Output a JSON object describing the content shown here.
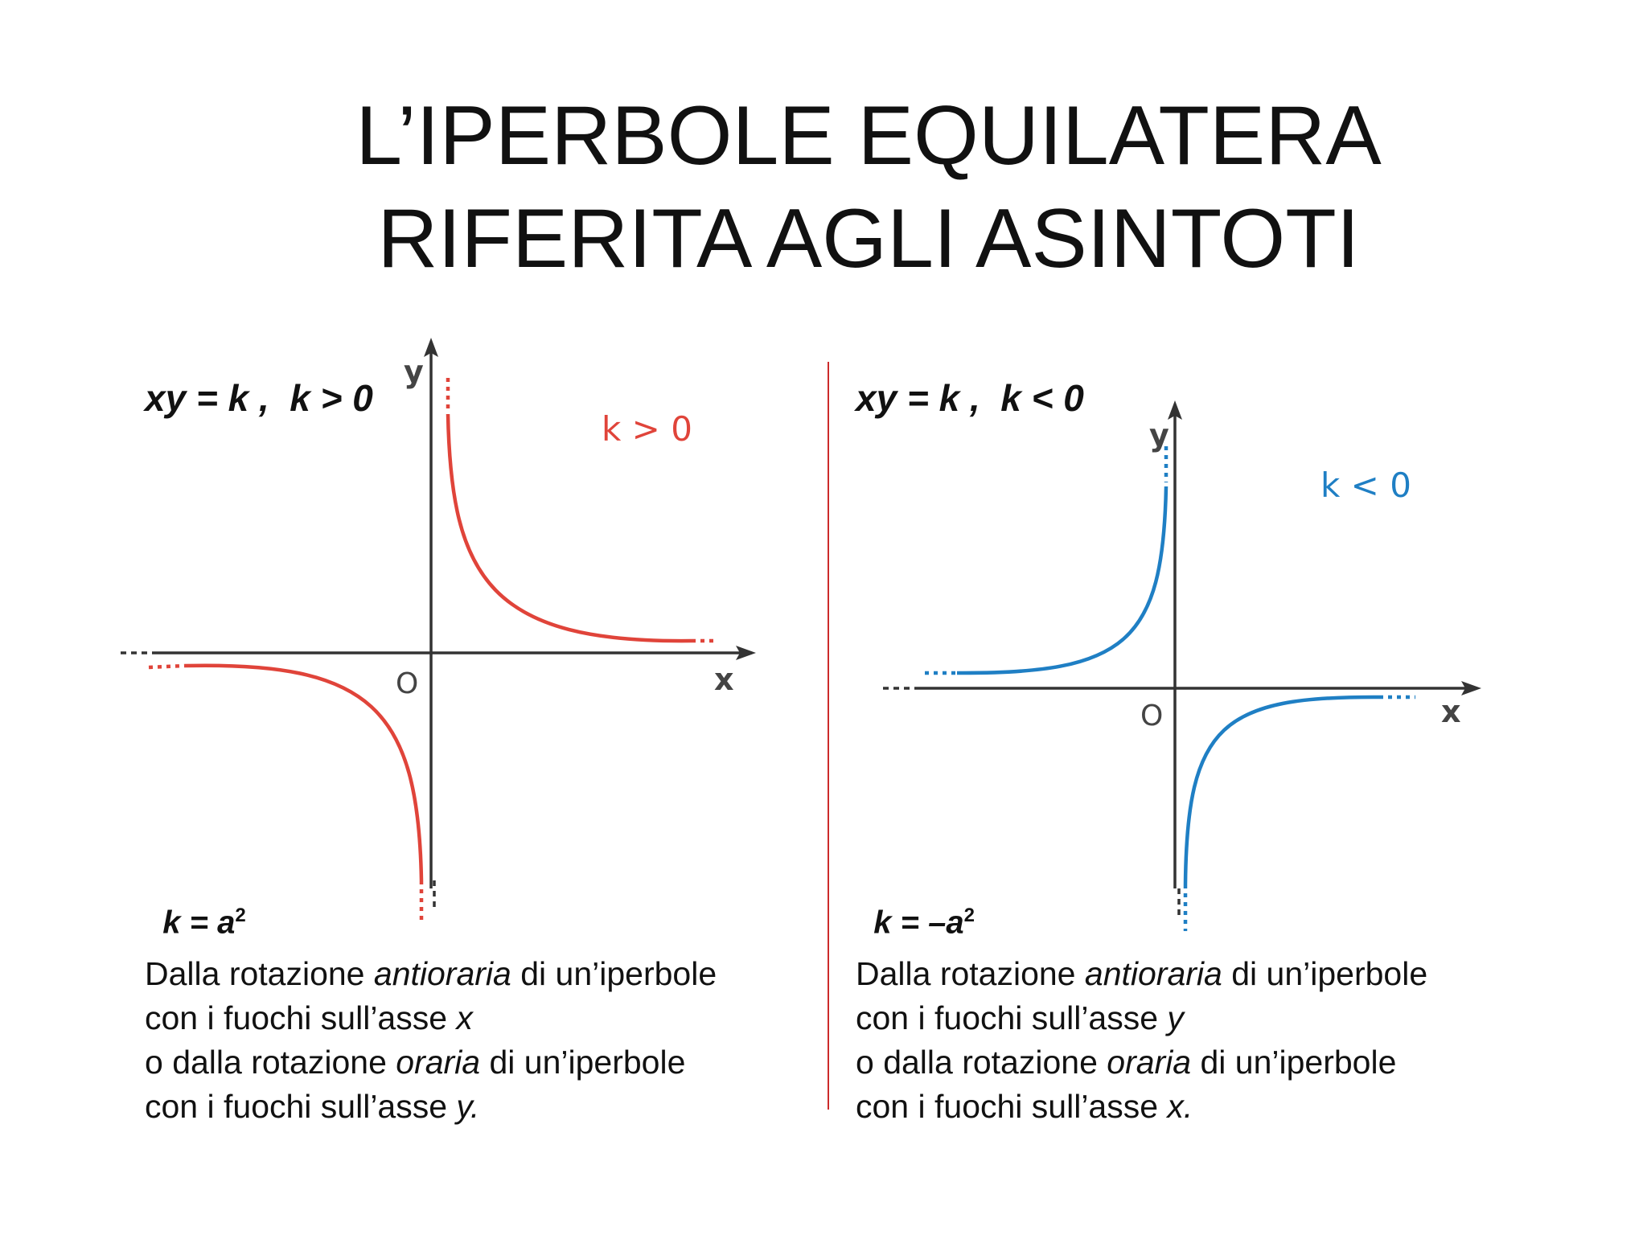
{
  "title": {
    "line1": "L’IPERBOLE EQUILATERA",
    "line2": "RIFERITA AGLI ASINTOTI"
  },
  "left": {
    "equation_main": "xy = k ,  k > 0",
    "k_label": "k = a",
    "k_exp": "2",
    "graph": {
      "curve_label": "k > 0",
      "x_axis": "x",
      "y_axis": "y",
      "origin": "O",
      "curve_color": "#e0443a"
    },
    "desc": {
      "l1a": "Dalla rotazione ",
      "l1b": "antioraria",
      "l1c": " di un’iperbole",
      "l2a": "con i fuochi sull’asse ",
      "l2b": "x",
      "l3a": "o dalla rotazione ",
      "l3b": "oraria",
      "l3c": " di un’iperbole",
      "l4a": "con i fuochi sull’asse ",
      "l4b": "y."
    }
  },
  "right": {
    "equation_main": "xy = k ,  k < 0",
    "k_label": "k = –a",
    "k_exp": "2",
    "graph": {
      "curve_label": "k < 0",
      "x_axis": "x",
      "y_axis": "y",
      "origin": "O",
      "curve_color": "#1f7fc4"
    },
    "desc": {
      "l1a": "Dalla rotazione ",
      "l1b": "antioraria",
      "l1c": " di un’iperbole",
      "l2a": "con i fuochi sull’asse ",
      "l2b": "y",
      "l3a": "o dalla rotazione ",
      "l3b": "oraria",
      "l3c": " di un’iperbole",
      "l4a": "con i fuochi sull’asse ",
      "l4b": "x."
    }
  },
  "divider_color": "#cc2b2b"
}
